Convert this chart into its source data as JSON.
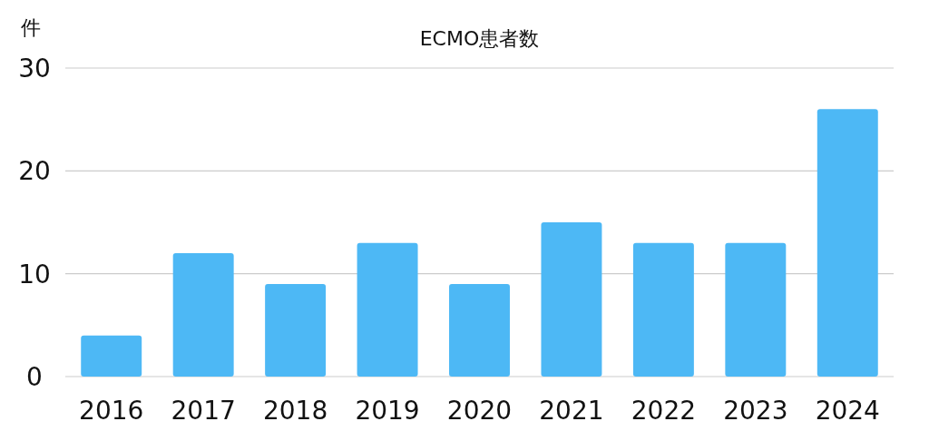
{
  "chart_data": {
    "type": "bar",
    "title": "ECMO患者数",
    "ylabel": "件",
    "categories": [
      "2016",
      "2017",
      "2018",
      "2019",
      "2020",
      "2021",
      "2022",
      "2023",
      "2024"
    ],
    "values": [
      4,
      12,
      9,
      13,
      9,
      15,
      13,
      13,
      26
    ],
    "color": "#4db8f5",
    "ylim": [
      0,
      30
    ],
    "yticks": [
      0,
      10,
      20,
      30
    ],
    "grid": "y"
  }
}
